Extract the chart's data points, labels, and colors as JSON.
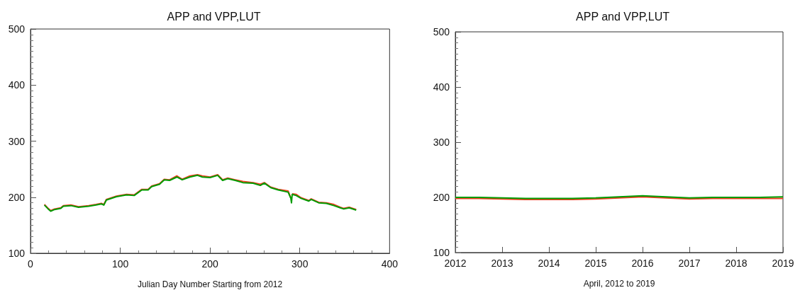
{
  "chart_data": [
    {
      "type": "line",
      "title": "APP and VPP,LUT",
      "xlabel": "Julian Day Number Starting from 2012",
      "xlim": [
        0,
        400
      ],
      "xticks": [
        0,
        100,
        200,
        300,
        400
      ],
      "ylim": [
        100,
        500
      ],
      "yticks": [
        100,
        200,
        300,
        400,
        500
      ],
      "grid": false,
      "x": [
        15.5,
        19.7,
        22.5,
        26.8,
        33.8,
        36.6,
        45,
        53.5,
        64.8,
        73,
        79,
        81.7,
        84.5,
        95.8,
        107,
        115.5,
        124,
        131,
        135,
        143.7,
        149,
        155,
        163,
        169,
        177.5,
        186,
        191.5,
        200,
        208.5,
        214,
        219.7,
        228,
        236.6,
        248,
        256,
        260.5,
        267.6,
        276,
        287,
        290,
        290.7,
        291.5,
        296,
        301.4,
        310,
        312.7,
        321,
        329.6,
        338,
        345,
        349,
        355,
        362.8
      ],
      "series": [
        {
          "color": "#f03c1e",
          "values": [
            187,
            180,
            176,
            179,
            181,
            185,
            186,
            183,
            185,
            187,
            189,
            187,
            196,
            202,
            205,
            204,
            214,
            214,
            220,
            224,
            232,
            231,
            238,
            232,
            238,
            240,
            238,
            236,
            240,
            231,
            234,
            231,
            228,
            226,
            223,
            226,
            218,
            214,
            211,
            199,
            null,
            206,
            205,
            199,
            194,
            197,
            191,
            190,
            187,
            182,
            180,
            182,
            178
          ]
        },
        {
          "color": "#009c00",
          "values": [
            186,
            179,
            175,
            178,
            180,
            184,
            185,
            182,
            184,
            186,
            188,
            186,
            195,
            201,
            204,
            203,
            213,
            213,
            219,
            223,
            231,
            230,
            236,
            231,
            236,
            239,
            236,
            235,
            239,
            230,
            233,
            230,
            226,
            225,
            221,
            225,
            217,
            213,
            209,
            198,
            190,
            205,
            203,
            198,
            193,
            196,
            190,
            189,
            185,
            181,
            179,
            181,
            177
          ]
        }
      ]
    },
    {
      "type": "line",
      "title": "APP and VPP,LUT",
      "xlabel": "April, 2012 to 2019",
      "xlim": [
        2012,
        2019
      ],
      "xticks": [
        2012,
        2013,
        2014,
        2015,
        2016,
        2017,
        2018,
        2019
      ],
      "ylim": [
        100,
        500
      ],
      "yticks": [
        100,
        200,
        300,
        400,
        500
      ],
      "grid": false,
      "x": [
        2012,
        2012.5,
        2013,
        2013.5,
        2014,
        2014.5,
        2015,
        2015.5,
        2016,
        2016.5,
        2017,
        2017.5,
        2018,
        2018.5,
        2019
      ],
      "series": [
        {
          "color": "#f03c1e",
          "values": [
            198,
            198,
            197,
            196,
            196,
            196,
            197,
            199,
            201,
            199,
            197,
            198,
            198,
            198,
            198
          ]
        },
        {
          "color": "#009c00",
          "values": [
            200,
            200,
            199,
            198,
            198,
            198,
            199,
            201,
            203,
            201,
            199,
            200,
            200,
            200,
            201
          ]
        }
      ]
    }
  ]
}
